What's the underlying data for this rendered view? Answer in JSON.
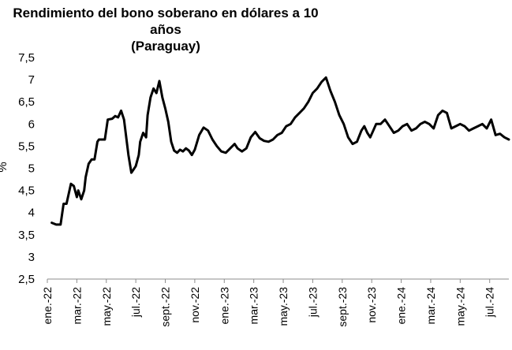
{
  "chart_data": {
    "type": "line",
    "title": "Rendimiento del bono soberano en dólares a 10 años",
    "subtitle": "(Paraguay)",
    "ylabel": "%",
    "xlabel": "",
    "ylim": [
      2.5,
      7.5
    ],
    "yticks": [
      "2,5",
      "3",
      "3,5",
      "4",
      "4,5",
      "5",
      "5,5",
      "6",
      "6,5",
      "7",
      "7,5"
    ],
    "xticks": [
      "ene.-22",
      "mar.-22",
      "may.-22",
      "jul.-22",
      "sept.-22",
      "nov.-22",
      "ene.-23",
      "mar.-23",
      "may.-23",
      "jul.-23",
      "sept.-23",
      "nov.-23",
      "ene.-24",
      "mar.-24",
      "may.-24",
      "jul.-24"
    ],
    "x_range_months": [
      0,
      31.3
    ],
    "grid": false,
    "legend": "none",
    "series_color": "#000000",
    "series": [
      {
        "x": [
          0.3,
          0.6,
          0.9,
          1.1,
          1.3,
          1.6,
          1.8,
          2.0,
          2.1,
          2.3,
          2.5,
          2.6,
          2.8,
          3.0,
          3.2,
          3.4,
          3.5,
          3.7,
          3.9,
          4.1,
          4.4,
          4.6,
          4.8,
          5.0,
          5.2,
          5.5,
          5.7,
          5.9,
          6.0,
          6.2,
          6.3,
          6.5,
          6.7,
          6.8,
          7.0,
          7.2,
          7.4,
          7.6,
          7.8,
          8.0,
          8.2,
          8.4,
          8.6,
          8.8,
          9.0,
          9.2,
          9.4,
          9.6,
          9.8,
          10.0,
          10.3,
          10.6,
          10.9,
          11.2,
          11.5,
          11.8,
          12.1,
          12.4,
          12.7,
          12.9,
          13.2,
          13.5,
          13.8,
          14.1,
          14.4,
          14.7,
          15.0,
          15.3,
          15.6,
          15.9,
          16.2,
          16.5,
          16.8,
          17.1,
          17.4,
          17.7,
          18.0,
          18.3,
          18.6,
          18.9,
          19.2,
          19.5,
          19.8,
          20.1,
          20.4,
          20.7,
          21.0,
          21.3,
          21.5,
          21.7,
          21.9,
          22.1,
          22.3,
          22.6,
          22.9,
          23.2,
          23.5,
          23.8,
          24.1,
          24.4,
          24.7,
          25.0,
          25.3,
          25.6,
          25.9,
          26.2,
          26.5,
          26.8,
          27.1,
          27.4,
          27.7,
          28.0,
          28.3,
          28.6,
          28.9,
          29.2,
          29.5,
          29.8,
          30.1,
          30.4,
          30.7,
          31.0,
          31.3
        ],
        "y": [
          3.77,
          3.73,
          3.73,
          4.2,
          4.2,
          4.65,
          4.6,
          4.35,
          4.5,
          4.3,
          4.5,
          4.8,
          5.1,
          5.2,
          5.2,
          5.6,
          5.65,
          5.65,
          5.65,
          6.1,
          6.12,
          6.18,
          6.15,
          6.3,
          6.1,
          5.3,
          4.9,
          5.0,
          5.05,
          5.3,
          5.6,
          5.8,
          5.7,
          6.2,
          6.6,
          6.8,
          6.7,
          6.97,
          6.6,
          6.35,
          6.05,
          5.6,
          5.4,
          5.35,
          5.42,
          5.38,
          5.45,
          5.4,
          5.3,
          5.42,
          5.75,
          5.92,
          5.85,
          5.65,
          5.5,
          5.38,
          5.35,
          5.45,
          5.55,
          5.45,
          5.38,
          5.45,
          5.7,
          5.82,
          5.68,
          5.62,
          5.6,
          5.65,
          5.75,
          5.8,
          5.95,
          6.0,
          6.15,
          6.25,
          6.35,
          6.5,
          6.7,
          6.8,
          6.95,
          7.05,
          6.75,
          6.5,
          6.2,
          6.0,
          5.7,
          5.55,
          5.6,
          5.85,
          5.95,
          5.8,
          5.7,
          5.85,
          6.0,
          6.0,
          6.1,
          5.95,
          5.8,
          5.85,
          5.95,
          6.0,
          5.85,
          5.9,
          6.0,
          6.05,
          6.0,
          5.9,
          6.2,
          6.3,
          6.25,
          5.9,
          5.95,
          6.0,
          5.95,
          5.85,
          5.9,
          5.95,
          6.0,
          5.9,
          6.1,
          5.75,
          5.78,
          5.7,
          5.65
        ]
      }
    ]
  }
}
